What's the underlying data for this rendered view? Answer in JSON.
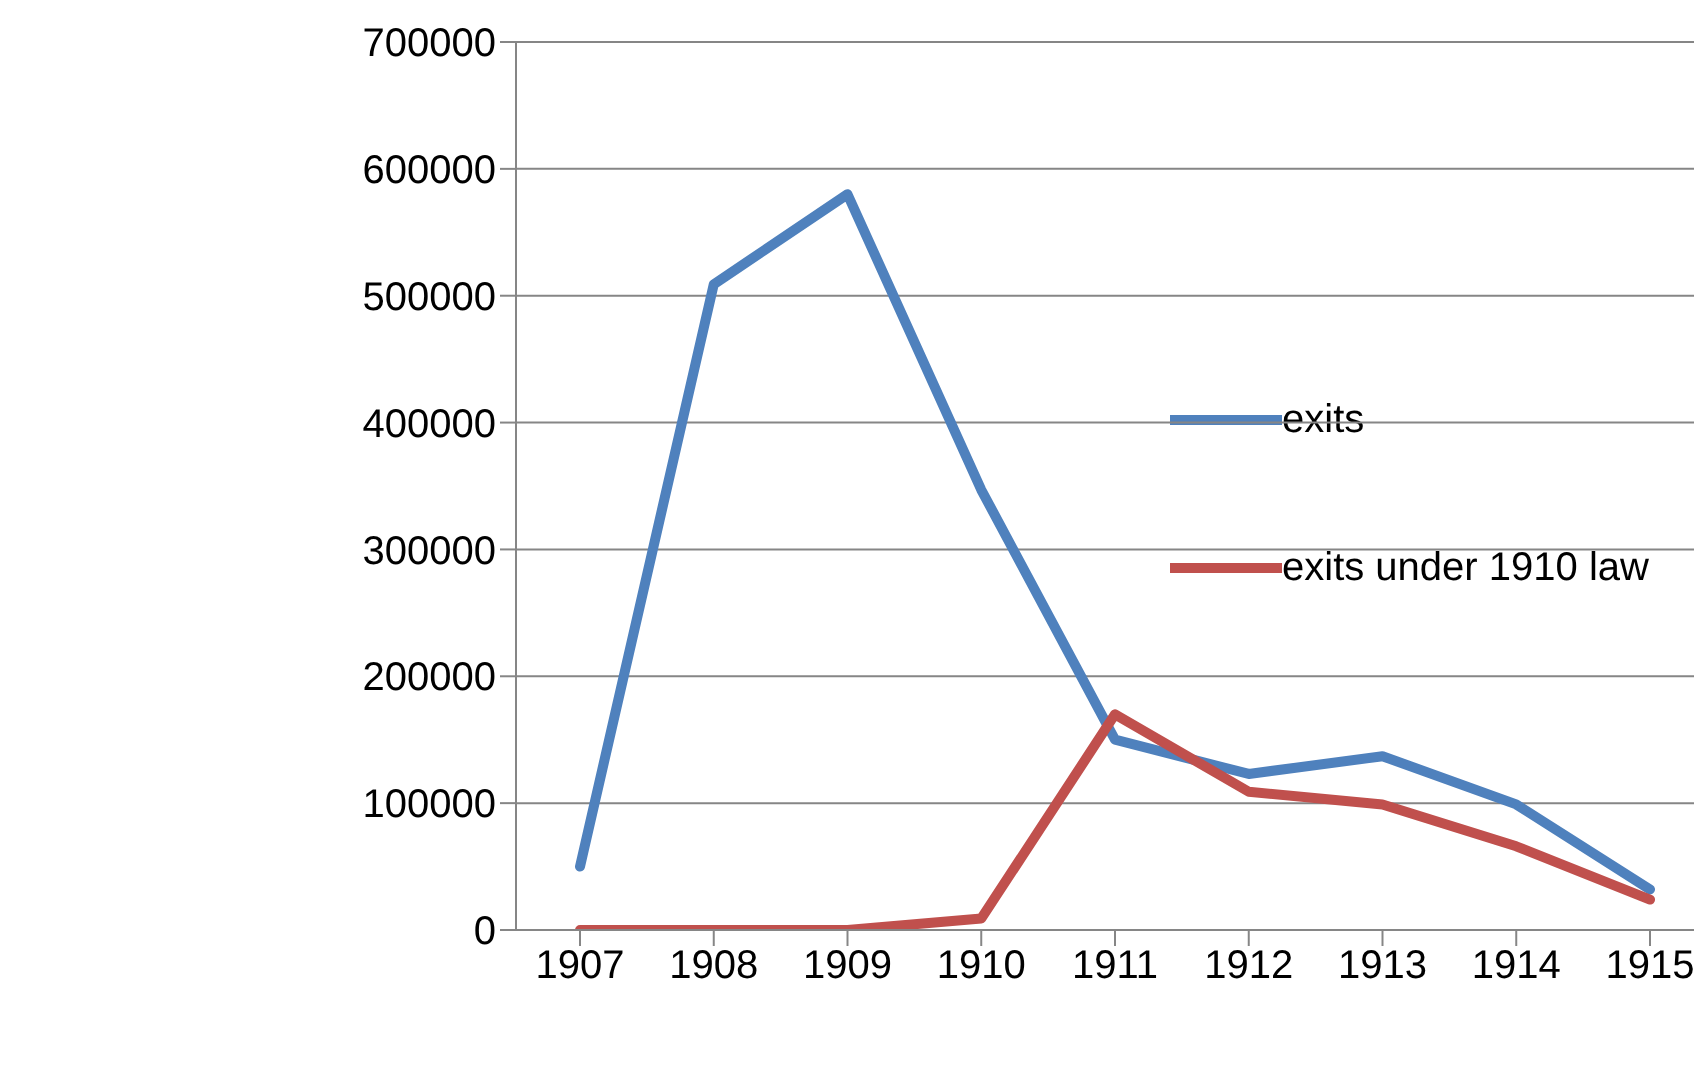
{
  "chart_data": {
    "type": "line",
    "categories": [
      "1907",
      "1908",
      "1909",
      "1910",
      "1911",
      "1912",
      "1913",
      "1914",
      "1915"
    ],
    "series": [
      {
        "name": "exits",
        "color": "#4f81bd",
        "values": [
          50000,
          509000,
          580000,
          347000,
          150000,
          123000,
          137000,
          99000,
          32000
        ]
      },
      {
        "name": "exits under 1910 law",
        "color": "#c0504d",
        "values": [
          0,
          0,
          0,
          9000,
          170000,
          109000,
          99000,
          66000,
          24000
        ]
      }
    ],
    "ylim": [
      0,
      700000
    ],
    "yticks": [
      0,
      100000,
      200000,
      300000,
      400000,
      500000,
      600000,
      700000
    ],
    "grid": "y",
    "legend": "right",
    "marker": "none",
    "line_style": "solid"
  }
}
